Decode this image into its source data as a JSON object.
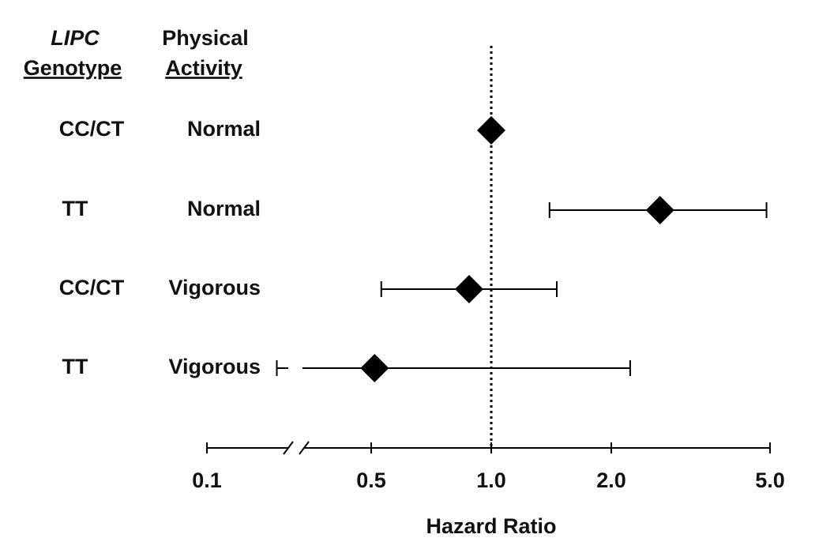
{
  "chart_data": {
    "type": "forest",
    "column_headers": [
      [
        "LIPC",
        "Genotype"
      ],
      [
        "Physical",
        "Activity"
      ]
    ],
    "genotypes": [
      "CC/CT",
      "TT",
      "CC/CT",
      "TT"
    ],
    "activities": [
      "Normal",
      "Normal",
      "Vigorous",
      "Vigorous"
    ],
    "values": [
      1.0,
      2.65,
      0.88,
      0.51
    ],
    "lower": [
      null,
      1.4,
      0.53,
      0.29
    ],
    "upper": [
      null,
      4.9,
      1.46,
      2.23
    ],
    "color": "#000000",
    "xlabel": "Hazard Ratio",
    "log_scale": true,
    "axis_break": true,
    "reference_line": 1,
    "xlim": [
      0.1,
      5
    ],
    "xticks": [
      0.1,
      0.5,
      {
        "value": 1,
        "label": "1.0"
      },
      {
        "value": 2,
        "label": "2.0"
      },
      {
        "value": 5,
        "label": "5.0"
      }
    ]
  }
}
